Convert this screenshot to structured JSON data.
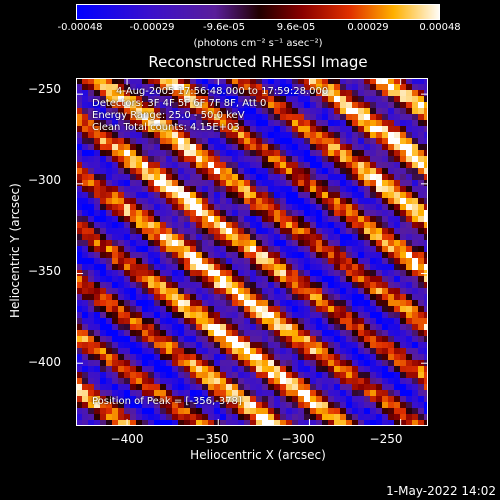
{
  "colorbar": {
    "ticks": [
      "-0.00048",
      "-0.00029",
      "-9.6e-05",
      "9.6e-05",
      "0.00029",
      "0.00048"
    ],
    "unit": "(photons cm⁻² s⁻¹ asec⁻²)",
    "min": -0.00048,
    "max": 0.00048
  },
  "chart_data": {
    "type": "heatmap",
    "title": "Reconstructed RHESSI Image",
    "xlabel": "Heliocentric X (arcsec)",
    "ylabel": "Heliocentric Y (arcsec)",
    "xlim": [
      -428,
      -235
    ],
    "ylim": [
      -435,
      -241
    ],
    "xticks": [
      -400,
      -350,
      -300,
      -250
    ],
    "yticks": [
      -250,
      -300,
      -350,
      -400
    ],
    "xtick_labels": [
      "−400",
      "−350",
      "−300",
      "−250"
    ],
    "ytick_labels": [
      "−250",
      "−300",
      "−350",
      "−400"
    ],
    "pattern": "diagonal fringe stripes running from upper-left to lower-right",
    "peak": [
      -356,
      -378
    ]
  },
  "annotations": {
    "time_range": "4-Aug-2005 17:56:48.000 to 17:59:28.000",
    "detectors": "Detectors: 3F 4F 5F 6F 7F 8F, Att 0",
    "energy": "Energy Range: 25.0 - 50.0 keV",
    "clean": "Clean    Total counts: 4.15E+03",
    "peak_label": "Position of Peak = [-356,-378]"
  },
  "footer": {
    "datestamp": "1-May-2022 14:02"
  }
}
